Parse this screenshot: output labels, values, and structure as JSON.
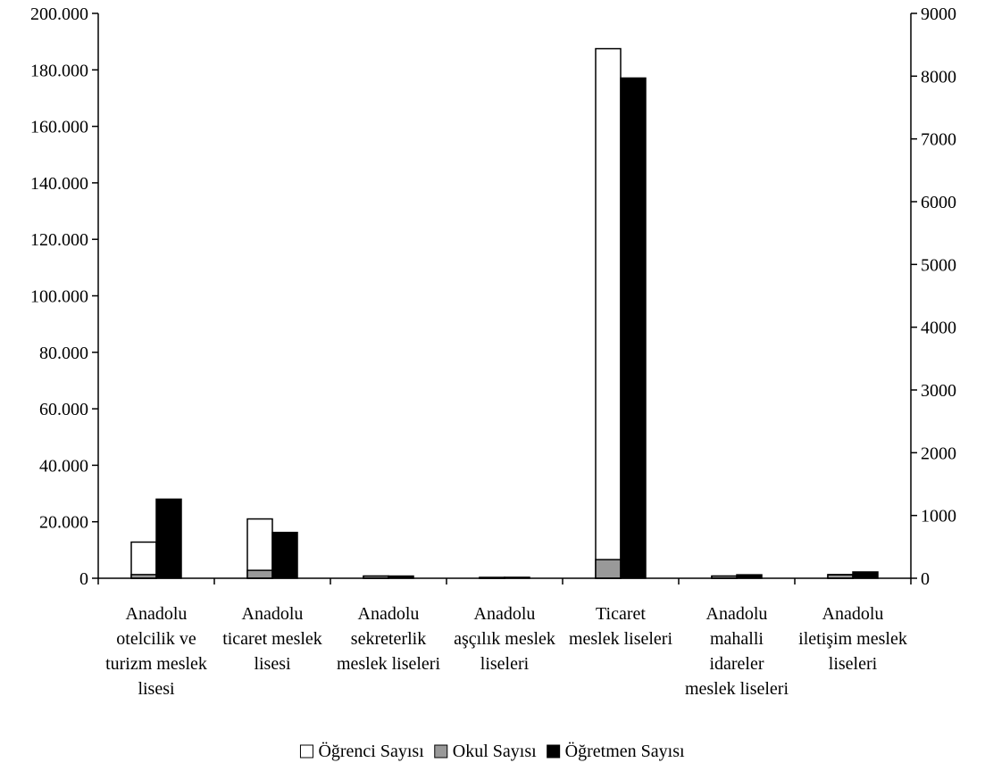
{
  "chart_data": {
    "type": "bar",
    "title": "",
    "xlabel": "",
    "ylabel": "",
    "categories": [
      "Anadolu otelcilik ve turizm meslek lisesi",
      "Anadolu ticaret meslek lisesi",
      "Anadolu sekreterlik meslek liseleri",
      "Anadolu aşçılık meslek liseleri",
      "Ticaret meslek liseleri",
      "Anadolu mahalli idareler meslek liseleri",
      "Anadolu iletişim meslek liseleri"
    ],
    "category_lines": [
      [
        "Anadolu",
        "otelcilik ve",
        "turizm meslek",
        "lisesi"
      ],
      [
        "Anadolu",
        "ticaret meslek",
        "lisesi"
      ],
      [
        "Anadolu",
        "sekreterlik",
        "meslek liseleri"
      ],
      [
        "Anadolu",
        "aşçılık meslek",
        "liseleri"
      ],
      [
        "Ticaret",
        "meslek liseleri"
      ],
      [
        "Anadolu",
        "mahalli",
        "idareler",
        "meslek liseleri"
      ],
      [
        "Anadolu",
        "iletişim meslek",
        "liseleri"
      ]
    ],
    "series": [
      {
        "name": "Öğrenci Sayısı",
        "axis": "left",
        "color": "#ffffff",
        "values": [
          12800,
          21000,
          600,
          250,
          187500,
          700,
          1300
        ]
      },
      {
        "name": "Okul Sayısı",
        "axis": "left",
        "color": "#999999",
        "values": [
          1300,
          2800,
          800,
          300,
          6600,
          800,
          1200
        ]
      },
      {
        "name": "Öğretmen Sayısı",
        "axis": "right",
        "color": "#000000",
        "values": [
          1260,
          730,
          35,
          15,
          7970,
          55,
          100
        ]
      }
    ],
    "y_left": {
      "ylim": [
        0,
        200000
      ],
      "ticks": [
        0,
        20000,
        40000,
        60000,
        80000,
        100000,
        120000,
        140000,
        160000,
        180000,
        200000
      ],
      "tick_labels": [
        "0",
        "20.000",
        "40.000",
        "60.000",
        "80.000",
        "100.000",
        "120.000",
        "140.000",
        "160.000",
        "180.000",
        "200.000"
      ]
    },
    "y_right": {
      "ylim": [
        0,
        9000
      ],
      "ticks": [
        0,
        1000,
        2000,
        3000,
        4000,
        5000,
        6000,
        7000,
        8000,
        9000
      ],
      "tick_labels": [
        "0",
        "1000",
        "2000",
        "3000",
        "4000",
        "5000",
        "6000",
        "7000",
        "8000",
        "9000"
      ]
    },
    "grid": false,
    "legend_position": "bottom"
  }
}
